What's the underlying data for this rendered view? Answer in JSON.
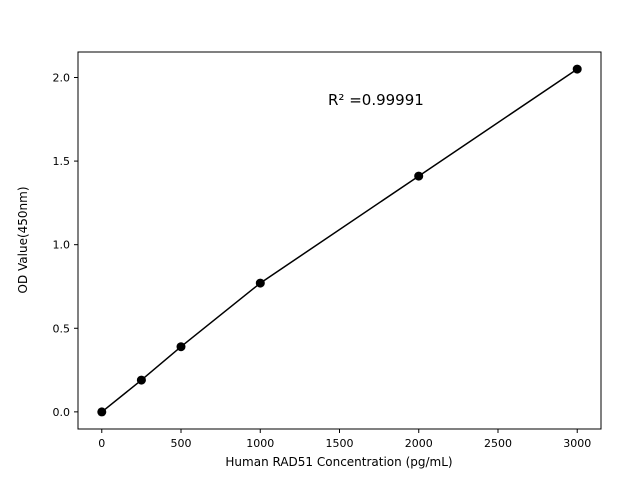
{
  "chart_data": {
    "type": "scatter",
    "x": [
      0,
      250,
      500,
      1000,
      2000,
      3000
    ],
    "y": [
      0.0,
      0.19,
      0.39,
      0.77,
      1.41,
      2.05
    ],
    "title": "",
    "xlabel": "Human RAD51 Concentration (pg/mL)",
    "ylabel": "OD Value(450nm)",
    "annotation": "R² =0.99991",
    "xlim": [
      -150,
      3150
    ],
    "ylim": [
      -0.1025,
      2.1525
    ],
    "xticks": [
      0,
      500,
      1000,
      1500,
      2000,
      2500,
      3000
    ],
    "xtick_labels": [
      "0",
      "500",
      "1000",
      "1500",
      "2000",
      "2500",
      "3000"
    ],
    "yticks": [
      0,
      0.5,
      1.0,
      1.5,
      2.0
    ],
    "ytick_labels": [
      "0.0",
      "0.5",
      "1.0",
      "1.5",
      "2.0"
    ],
    "grid": false,
    "line": true,
    "line_color": "#000000",
    "marker_color": "#000000",
    "background_color": "#ffffff"
  }
}
